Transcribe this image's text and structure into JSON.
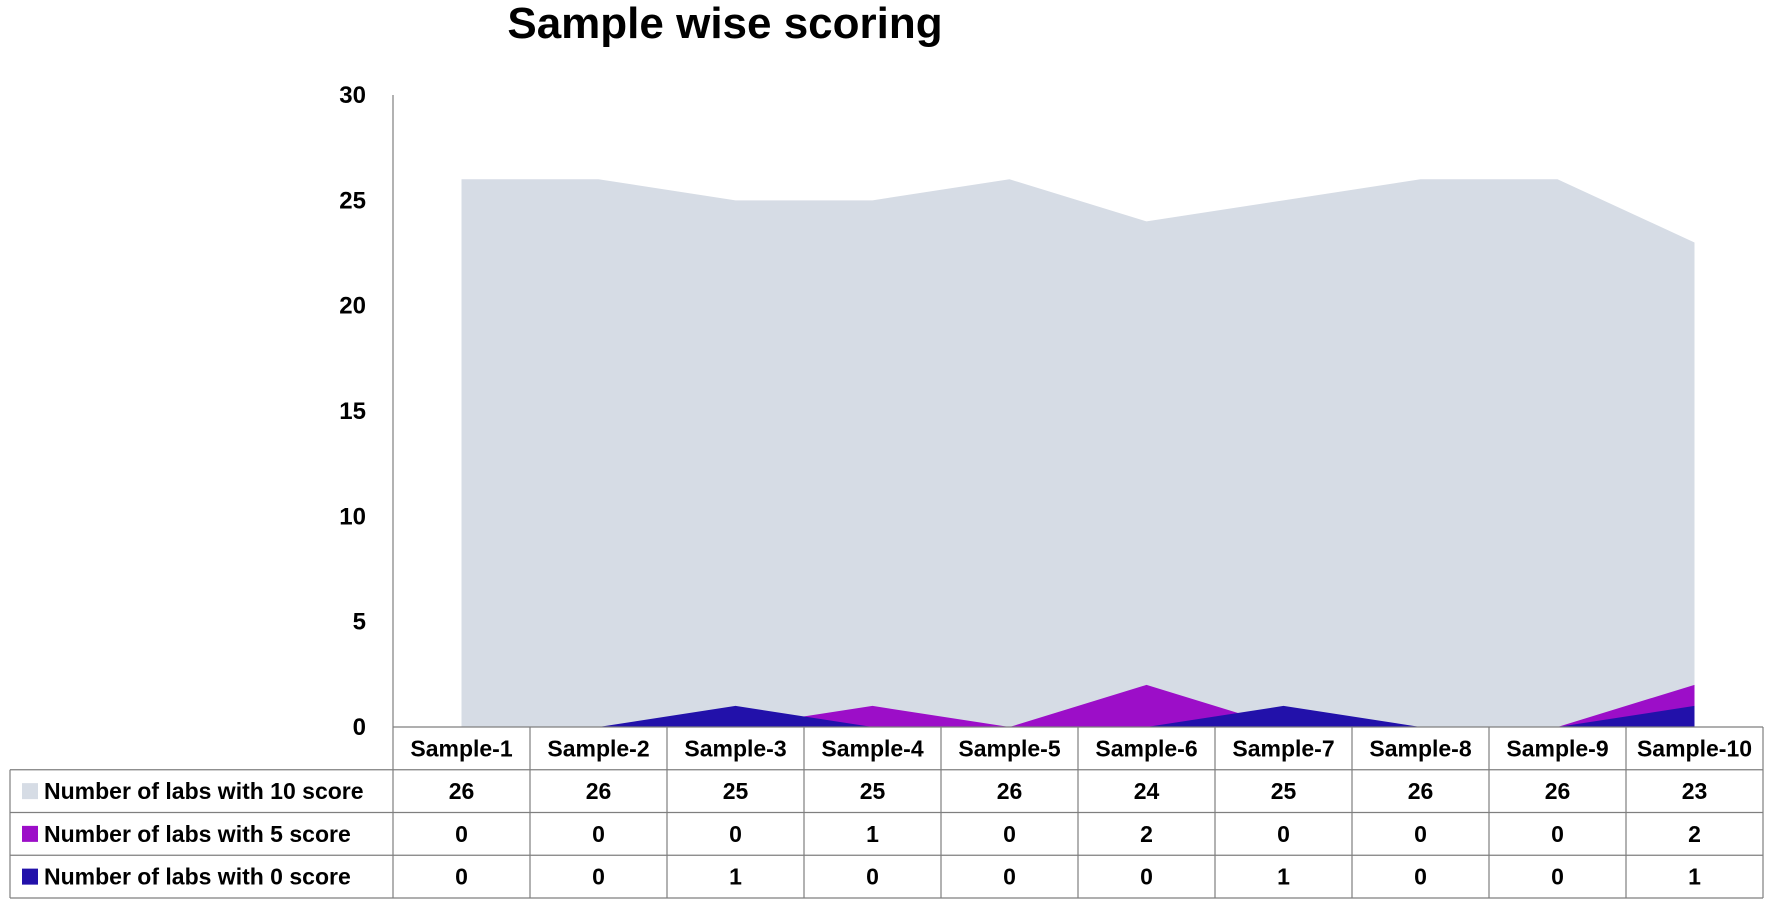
{
  "chart_data": {
    "type": "area",
    "title": "Sample wise scoring",
    "categories": [
      "Sample-1",
      "Sample-2",
      "Sample-3",
      "Sample-4",
      "Sample-5",
      "Sample-6",
      "Sample-7",
      "Sample-8",
      "Sample-9",
      "Sample-10"
    ],
    "series": [
      {
        "name": "Number of labs with 10 score",
        "color": "#d6dce5",
        "values": [
          26,
          26,
          25,
          25,
          26,
          24,
          25,
          26,
          26,
          23
        ]
      },
      {
        "name": "Number of labs with 5 score",
        "color": "#9c0ec8",
        "values": [
          0,
          0,
          0,
          1,
          0,
          2,
          0,
          0,
          0,
          2
        ]
      },
      {
        "name": "Number of labs with 0 score",
        "color": "#2211aa",
        "values": [
          0,
          0,
          1,
          0,
          0,
          0,
          1,
          0,
          0,
          1
        ]
      }
    ],
    "ylim": [
      0,
      30
    ],
    "yticks": [
      0,
      5,
      10,
      15,
      20,
      25,
      30
    ],
    "xlabel": "",
    "ylabel": "",
    "grid": false,
    "legend": "data-table-left",
    "data_table": true
  }
}
